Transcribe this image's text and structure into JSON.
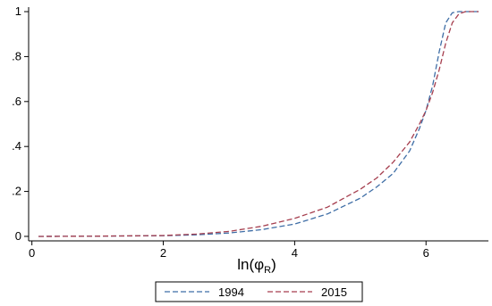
{
  "chart_data": {
    "type": "line",
    "xlabel": "ln(φR)",
    "xlabel_main": "ln(φ",
    "xlabel_sub": "R",
    "xlabel_close": ")",
    "ylabel": "",
    "xlim": [
      -0.05,
      6.95
    ],
    "ylim": [
      -0.02,
      1.02
    ],
    "x_ticks": [
      0,
      2,
      4,
      6
    ],
    "x_tick_labels": [
      "0",
      "2",
      "4",
      "6"
    ],
    "y_ticks": [
      0,
      0.2,
      0.4,
      0.6,
      0.8,
      1
    ],
    "y_tick_labels": [
      "0",
      ".2",
      ".4",
      ".6",
      ".8",
      "1"
    ],
    "grid": true,
    "legend_position": "bottom",
    "series": [
      {
        "name": "1994",
        "color": "#3f6ea6",
        "x": [
          0.1,
          1,
          2,
          2.5,
          3,
          3.5,
          4,
          4.5,
          5,
          5.25,
          5.5,
          5.75,
          5.9,
          6.0,
          6.1,
          6.2,
          6.3,
          6.4,
          6.5,
          6.6,
          6.8
        ],
        "y": [
          0,
          0.001,
          0.003,
          0.007,
          0.015,
          0.03,
          0.055,
          0.1,
          0.17,
          0.22,
          0.28,
          0.38,
          0.48,
          0.56,
          0.67,
          0.82,
          0.95,
          0.995,
          1,
          1,
          1
        ]
      },
      {
        "name": "2015",
        "color": "#a63f4f",
        "x": [
          0.1,
          1,
          2,
          2.5,
          3,
          3.5,
          4,
          4.5,
          5,
          5.25,
          5.5,
          5.75,
          5.9,
          6.0,
          6.1,
          6.2,
          6.3,
          6.4,
          6.5,
          6.6,
          6.8
        ],
        "y": [
          0,
          0.001,
          0.004,
          0.01,
          0.022,
          0.045,
          0.08,
          0.13,
          0.21,
          0.26,
          0.33,
          0.42,
          0.5,
          0.56,
          0.64,
          0.74,
          0.86,
          0.95,
          0.99,
          1,
          1
        ]
      }
    ]
  }
}
